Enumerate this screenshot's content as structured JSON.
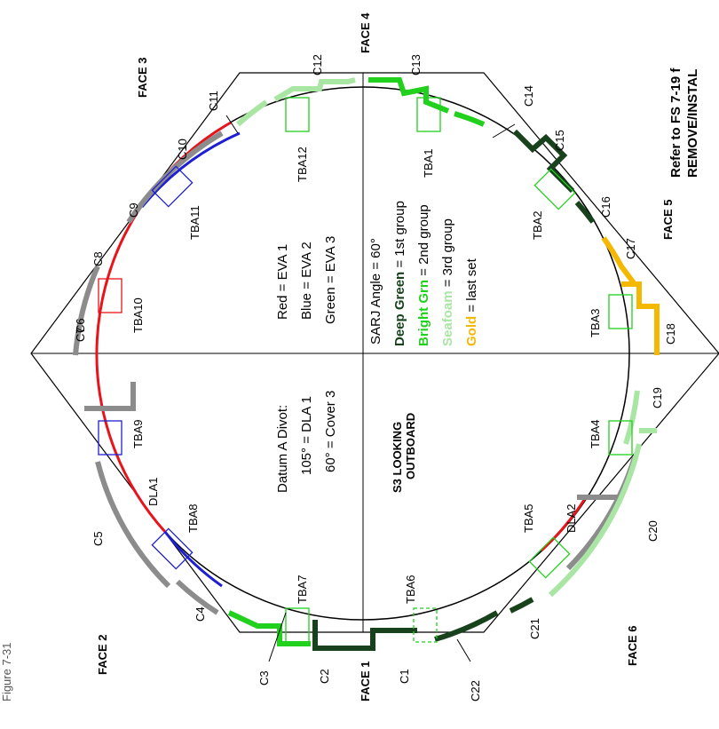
{
  "title": "S3 LOOKING OUTBOARD",
  "ref_note": [
    "Refer to FS 7-19 f",
    "REMOVE/INSTAL"
  ],
  "clipped_corner": "Figure 7-31",
  "faces": {
    "face1": "FACE 1",
    "face2": "FACE 2",
    "face3": "FACE 3",
    "face4": "FACE 4",
    "face5": "FACE 5",
    "face6": "FACE 6"
  },
  "covers": {
    "c1": "C1",
    "c2": "C2",
    "c3": "C3",
    "c4": "C4",
    "c5": "C5",
    "c6": "C6",
    "c7": "C7",
    "c8": "C8",
    "c9": "C9",
    "c10": "C10",
    "c11": "C11",
    "c12": "C12",
    "c13": "C13",
    "c14": "C14",
    "c15": "C15",
    "c16": "C16",
    "c17": "C17",
    "c18": "C18",
    "c19": "C19",
    "c20": "C20",
    "c21": "C21",
    "c22": "C22"
  },
  "tbas": {
    "tba1": "TBA1",
    "tba2": "TBA2",
    "tba3": "TBA3",
    "tba4": "TBA4",
    "tba5": "TBA5",
    "tba6": "TBA6",
    "tba7": "TBA7",
    "tba8": "TBA8",
    "tba9": "TBA9",
    "tba10": "TBA10",
    "tba11": "TBA11",
    "tba12": "TBA12"
  },
  "dlas": {
    "dla1": "DLA1",
    "dla2": "DLA2"
  },
  "legend_eva": {
    "red": "Red = EVA 1",
    "blue": "Blue = EVA 2",
    "green": "Green = EVA 3"
  },
  "sarj": "SARJ Angle = 60°",
  "groups": [
    {
      "bold": "Deep Green",
      "rest": " = 1st group",
      "color": "#17421c"
    },
    {
      "bold": "Bright Grn",
      "rest": " = 2nd group",
      "color": "#22d01e"
    },
    {
      "bold": "Seafoam",
      "rest": " = 3rd group",
      "color": "#a9e6a4"
    },
    {
      "bold": "Gold",
      "rest": " = last set",
      "color": "#f5b800"
    }
  ],
  "datum": {
    "heading": "Datum A Divot:",
    "line1": "105° = DLA 1",
    "line2": "60° = Cover 3"
  },
  "colors": {
    "red": "#e8141b",
    "blue": "#1d1fd1",
    "deep_green": "#17421c",
    "bright_green": "#22d01e",
    "seafoam": "#a9e6a4",
    "gold": "#f5b800",
    "gray": "#8c8c8c",
    "black": "#000000"
  }
}
